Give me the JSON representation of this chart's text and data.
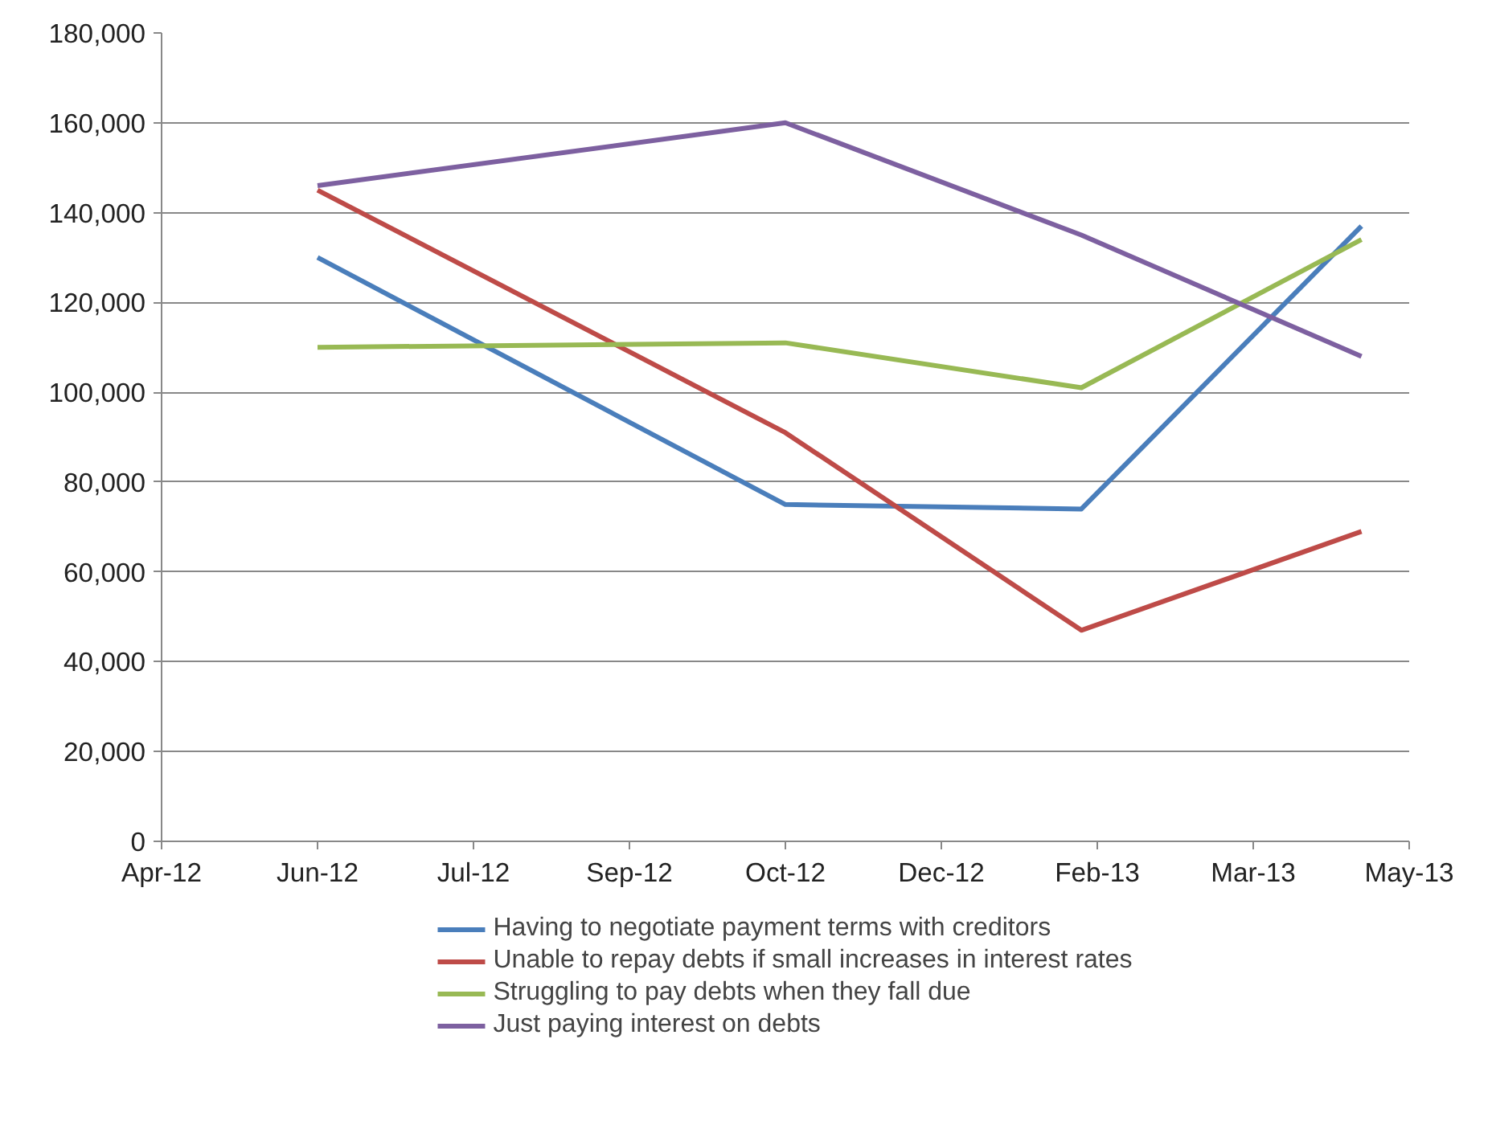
{
  "chart_data": {
    "type": "line",
    "x": [
      "2012-06-03",
      "2012-10-28",
      "2013-01-29",
      "2013-04-27"
    ],
    "series": [
      {
        "name": "Having to negotiate payment terms with creditors",
        "color": "#4a7ebb",
        "values": [
          130000,
          75000,
          74000,
          137000
        ]
      },
      {
        "name": "Unable to repay debts if small increases in interest rates",
        "color": "#be4b48",
        "values": [
          145000,
          91000,
          47000,
          69000
        ]
      },
      {
        "name": "Struggling to pay debts when they fall due",
        "color": "#98b954",
        "values": [
          110000,
          111000,
          101000,
          134000
        ]
      },
      {
        "name": "Just paying interest on debts",
        "color": "#7d60a0",
        "values": [
          146000,
          160000,
          135000,
          108000
        ]
      }
    ],
    "xlim": [
      "2012-04-15",
      "2013-05-12"
    ],
    "xticks": [
      {
        "value": "2012-04-15",
        "label": "Apr-12"
      },
      {
        "value": "2012-06-03",
        "label": "Jun-12"
      },
      {
        "value": "2012-07-22",
        "label": "Jul-12"
      },
      {
        "value": "2012-09-09",
        "label": "Sep-12"
      },
      {
        "value": "2012-10-28",
        "label": "Oct-12"
      },
      {
        "value": "2012-12-16",
        "label": "Dec-12"
      },
      {
        "value": "2013-02-03",
        "label": "Feb-13"
      },
      {
        "value": "2013-03-24",
        "label": "Mar-13"
      },
      {
        "value": "2013-05-12",
        "label": "May-13"
      }
    ],
    "ylim": [
      0,
      180000
    ],
    "yticks": [
      {
        "value": 0,
        "label": "0"
      },
      {
        "value": 20000,
        "label": "20,000"
      },
      {
        "value": 40000,
        "label": "40,000"
      },
      {
        "value": 60000,
        "label": "60,000"
      },
      {
        "value": 80000,
        "label": "80,000"
      },
      {
        "value": 100000,
        "label": "100,000"
      },
      {
        "value": 120000,
        "label": "120,000"
      },
      {
        "value": 140000,
        "label": "140,000"
      },
      {
        "value": 160000,
        "label": "160,000"
      },
      {
        "value": 180000,
        "label": "180,000"
      }
    ],
    "grid": "y",
    "legend": "bottom",
    "marker": "none",
    "line_style": "solid"
  }
}
